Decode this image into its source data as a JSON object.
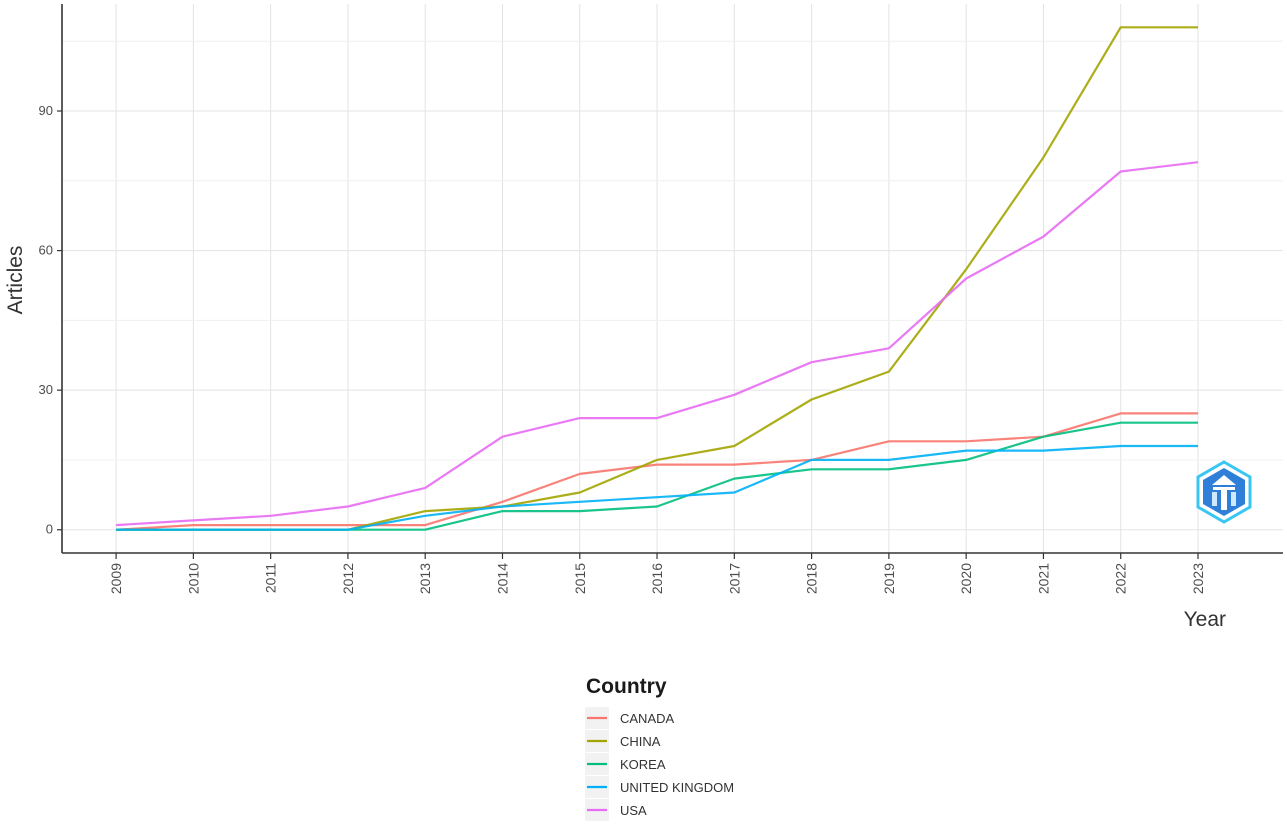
{
  "chart_data": {
    "type": "line",
    "xlabel": "Year",
    "ylabel": "Articles",
    "x": [
      2009,
      2010,
      2011,
      2012,
      2013,
      2014,
      2015,
      2016,
      2017,
      2018,
      2019,
      2020,
      2021,
      2022,
      2023
    ],
    "x_tick_labels": [
      "2009",
      "2010",
      "2011",
      "2012",
      "2013",
      "2014",
      "2015",
      "2016",
      "2017",
      "2018",
      "2019",
      "2020",
      "2021",
      "2022",
      "2023"
    ],
    "xlim": [
      2008.3,
      2024.1
    ],
    "ylim": [
      -5,
      113
    ],
    "y_ticks": [
      0,
      30,
      60,
      90
    ],
    "y_tick_labels": [
      "0",
      "30",
      "60",
      "90"
    ],
    "grid": true,
    "legend": {
      "title": "Country",
      "position": "bottom"
    },
    "series": [
      {
        "name": "CANADA",
        "color": "#F8766D",
        "values": [
          0,
          1,
          1,
          1,
          1,
          6,
          12,
          14,
          14,
          15,
          19,
          19,
          20,
          25,
          25
        ]
      },
      {
        "name": "CHINA",
        "color": "#A3A500",
        "values": [
          0,
          0,
          0,
          0,
          4,
          5,
          8,
          15,
          18,
          28,
          34,
          56,
          80,
          108,
          108
        ]
      },
      {
        "name": "KOREA",
        "color": "#00BF7D",
        "values": [
          0,
          0,
          0,
          0,
          0,
          4,
          4,
          5,
          11,
          13,
          13,
          15,
          20,
          23,
          23
        ]
      },
      {
        "name": "UNITED KINGDOM",
        "color": "#00B0F6",
        "values": [
          0,
          0,
          0,
          0,
          3,
          5,
          6,
          7,
          8,
          15,
          15,
          17,
          17,
          18,
          18
        ]
      },
      {
        "name": "USA",
        "color": "#E76BF3",
        "values": [
          1,
          2,
          3,
          5,
          9,
          20,
          24,
          24,
          29,
          36,
          39,
          54,
          63,
          77,
          79
        ]
      }
    ]
  },
  "watermark": {
    "icon": "hexagon-logo-icon",
    "color": "#2f7fd8"
  }
}
